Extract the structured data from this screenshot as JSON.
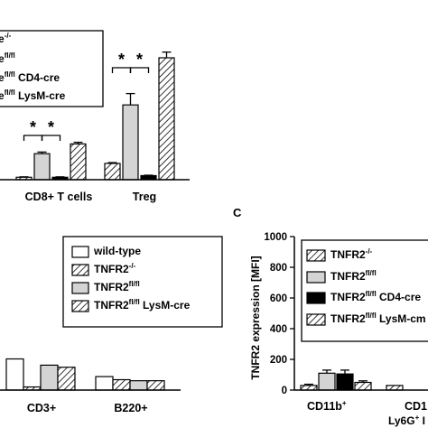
{
  "chart_data": [
    {
      "panel": "top",
      "type": "bar",
      "categories": [
        "CD8+ T cells",
        "Treg"
      ],
      "legend": [
        {
          "name_sup": "-/-"
        },
        {
          "name_sup": "fl/fl"
        },
        {
          "name_sup": "fl/fl",
          "name_post": "CD4-cre"
        },
        {
          "name_sup": "fl/fl",
          "name_post": "LysM-cre"
        }
      ],
      "series": [
        {
          "values": [
            3,
            20
          ],
          "errors": [
            0.5,
            1
          ]
        },
        {
          "values": [
            32,
            92
          ],
          "errors": [
            2,
            14
          ]
        },
        {
          "values": [
            3,
            5
          ],
          "errors": [
            0.5,
            0.5
          ]
        },
        {
          "values": [
            44,
            150
          ],
          "errors": [
            2,
            7
          ]
        }
      ],
      "annotations": [
        "*",
        "*",
        "*",
        "*"
      ]
    },
    {
      "panel": "bottom-left",
      "type": "bar",
      "categories": [
        "CD3+",
        "B220+"
      ],
      "legend": [
        {
          "name": "wild-type"
        },
        {
          "name": "TNFR2",
          "name_sup": "-/-"
        },
        {
          "name": "TNFR2",
          "name_sup": "fl/fl"
        },
        {
          "name": "TNFR2",
          "name_sup": "fl/fl",
          "name_post": "LysM-cre"
        }
      ],
      "series": [
        {
          "values": [
            15,
            6.5
          ]
        },
        {
          "values": [
            1.5,
            5
          ]
        },
        {
          "values": [
            12,
            4.5
          ]
        },
        {
          "values": [
            11,
            4.5
          ]
        }
      ]
    },
    {
      "panel": "C",
      "type": "bar",
      "panel_label": "C",
      "ylabel": "TNFR2 expression [MFI]",
      "ylim": [
        0,
        1000
      ],
      "yticks": [
        "0",
        "200",
        "400",
        "600",
        "800",
        "1000"
      ],
      "categories": [
        "CD11b",
        "CD1"
      ],
      "category_sup": [
        "+",
        ""
      ],
      "sub_label": "Ly6G",
      "sub_label_sup": "+",
      "sub_label_post": "I",
      "legend": [
        {
          "name": "TNFR2",
          "name_sup": "-/-"
        },
        {
          "name": "TNFR2",
          "name_sup": "fl/fl"
        },
        {
          "name": "TNFR2",
          "name_sup": "fl/fl",
          "name_post": "CD4-cre"
        },
        {
          "name": "TNFR2",
          "name_sup": "fl/fl",
          "name_post": "LysM-cm"
        }
      ],
      "series": [
        {
          "values": [
            30,
            30
          ],
          "errors": [
            8,
            0
          ]
        },
        {
          "values": [
            110,
            0
          ],
          "errors": [
            20,
            0
          ]
        },
        {
          "values": [
            105,
            0
          ],
          "errors": [
            25,
            0
          ]
        },
        {
          "values": [
            50,
            0
          ],
          "errors": [
            10,
            0
          ]
        }
      ]
    }
  ]
}
